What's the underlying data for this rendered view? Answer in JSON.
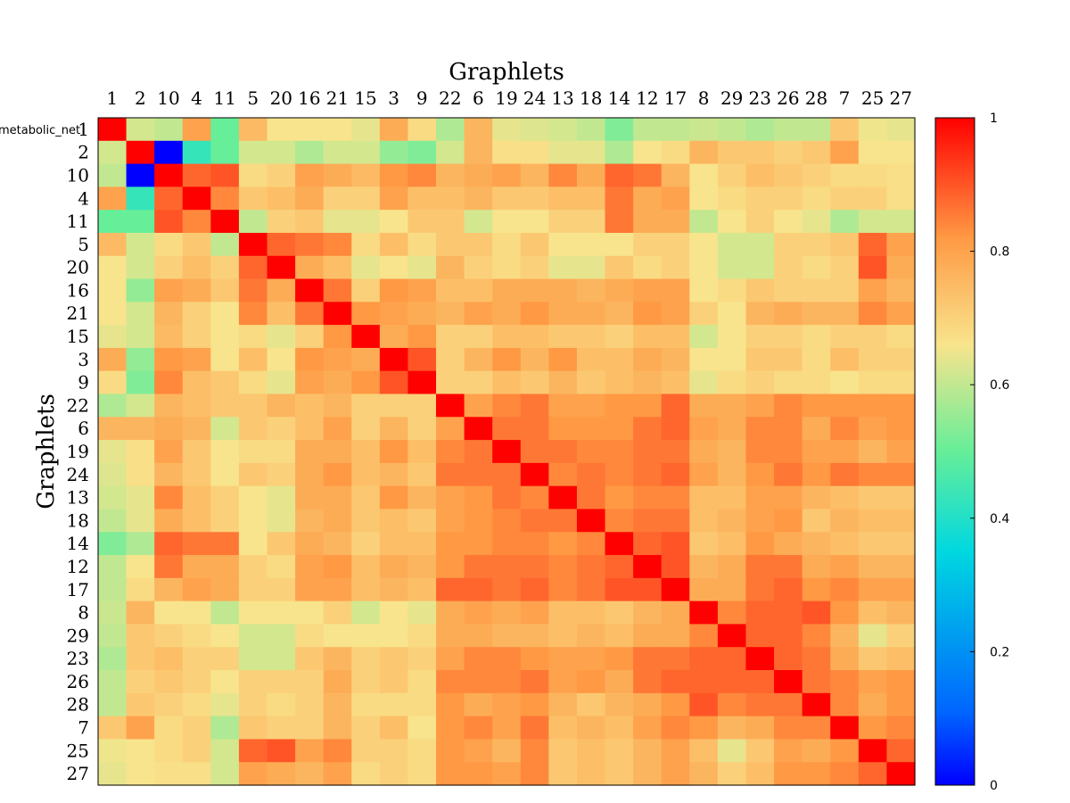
{
  "chart_data": {
    "type": "heatmap",
    "title": "Graphlets",
    "xlabel": "",
    "ylabel": "Graphlets",
    "annotation": "metabolic_net",
    "categories": [
      "1",
      "2",
      "10",
      "4",
      "11",
      "5",
      "20",
      "16",
      "21",
      "15",
      "3",
      "9",
      "22",
      "6",
      "19",
      "24",
      "13",
      "18",
      "14",
      "12",
      "17",
      "8",
      "29",
      "23",
      "26",
      "28",
      "7",
      "25",
      "27"
    ],
    "colorbar": {
      "range": [
        0,
        1
      ],
      "ticks": [
        "0",
        "0.2",
        "0.4",
        "0.6",
        "0.8",
        "1"
      ],
      "colormap": "jet"
    },
    "values": [
      [
        1.0,
        0.62,
        0.6,
        0.8,
        0.5,
        0.75,
        0.66,
        0.66,
        0.66,
        0.64,
        0.78,
        0.68,
        0.58,
        0.76,
        0.64,
        0.63,
        0.62,
        0.6,
        0.53,
        0.6,
        0.6,
        0.61,
        0.6,
        0.58,
        0.6,
        0.6,
        0.72,
        0.65,
        0.64
      ],
      [
        0.62,
        1.0,
        0.0,
        0.43,
        0.5,
        0.62,
        0.62,
        0.58,
        0.62,
        0.62,
        0.55,
        0.53,
        0.62,
        0.76,
        0.67,
        0.67,
        0.64,
        0.64,
        0.58,
        0.66,
        0.68,
        0.76,
        0.72,
        0.72,
        0.7,
        0.72,
        0.8,
        0.66,
        0.66
      ],
      [
        0.6,
        0.0,
        1.0,
        0.88,
        0.9,
        0.68,
        0.7,
        0.8,
        0.78,
        0.75,
        0.82,
        0.84,
        0.76,
        0.78,
        0.8,
        0.76,
        0.84,
        0.78,
        0.88,
        0.86,
        0.76,
        0.66,
        0.7,
        0.74,
        0.72,
        0.7,
        0.68,
        0.68,
        0.67
      ],
      [
        0.8,
        0.43,
        0.88,
        1.0,
        0.84,
        0.72,
        0.74,
        0.78,
        0.7,
        0.7,
        0.8,
        0.74,
        0.74,
        0.76,
        0.72,
        0.72,
        0.74,
        0.74,
        0.86,
        0.78,
        0.8,
        0.66,
        0.68,
        0.7,
        0.7,
        0.68,
        0.7,
        0.7,
        0.67
      ],
      [
        0.5,
        0.5,
        0.9,
        0.84,
        1.0,
        0.6,
        0.7,
        0.72,
        0.64,
        0.64,
        0.66,
        0.72,
        0.72,
        0.62,
        0.66,
        0.66,
        0.7,
        0.7,
        0.86,
        0.78,
        0.78,
        0.6,
        0.66,
        0.7,
        0.66,
        0.64,
        0.58,
        0.62,
        0.62
      ],
      [
        0.75,
        0.62,
        0.68,
        0.72,
        0.6,
        1.0,
        0.88,
        0.86,
        0.84,
        0.68,
        0.74,
        0.68,
        0.72,
        0.72,
        0.68,
        0.72,
        0.66,
        0.66,
        0.66,
        0.7,
        0.7,
        0.66,
        0.62,
        0.62,
        0.7,
        0.7,
        0.72,
        0.88,
        0.8
      ],
      [
        0.66,
        0.62,
        0.7,
        0.74,
        0.7,
        0.88,
        1.0,
        0.78,
        0.74,
        0.64,
        0.66,
        0.64,
        0.76,
        0.7,
        0.68,
        0.7,
        0.64,
        0.64,
        0.72,
        0.68,
        0.7,
        0.66,
        0.62,
        0.62,
        0.7,
        0.68,
        0.7,
        0.9,
        0.78
      ],
      [
        0.66,
        0.55,
        0.8,
        0.78,
        0.72,
        0.86,
        0.78,
        1.0,
        0.86,
        0.7,
        0.82,
        0.8,
        0.74,
        0.74,
        0.78,
        0.78,
        0.78,
        0.76,
        0.78,
        0.8,
        0.8,
        0.66,
        0.68,
        0.72,
        0.7,
        0.7,
        0.7,
        0.8,
        0.76
      ],
      [
        0.66,
        0.62,
        0.76,
        0.7,
        0.66,
        0.84,
        0.74,
        0.86,
        1.0,
        0.82,
        0.8,
        0.78,
        0.76,
        0.8,
        0.78,
        0.82,
        0.78,
        0.78,
        0.76,
        0.82,
        0.8,
        0.7,
        0.66,
        0.76,
        0.78,
        0.76,
        0.76,
        0.84,
        0.8
      ],
      [
        0.64,
        0.62,
        0.75,
        0.7,
        0.66,
        0.68,
        0.64,
        0.7,
        0.82,
        1.0,
        0.78,
        0.82,
        0.7,
        0.7,
        0.74,
        0.74,
        0.72,
        0.72,
        0.7,
        0.74,
        0.74,
        0.62,
        0.66,
        0.7,
        0.7,
        0.68,
        0.7,
        0.7,
        0.68
      ],
      [
        0.78,
        0.55,
        0.82,
        0.8,
        0.66,
        0.74,
        0.66,
        0.82,
        0.8,
        0.78,
        1.0,
        0.9,
        0.7,
        0.76,
        0.82,
        0.76,
        0.82,
        0.74,
        0.74,
        0.78,
        0.76,
        0.66,
        0.66,
        0.72,
        0.72,
        0.68,
        0.74,
        0.7,
        0.7
      ],
      [
        0.68,
        0.53,
        0.84,
        0.74,
        0.72,
        0.68,
        0.64,
        0.8,
        0.78,
        0.82,
        0.9,
        1.0,
        0.7,
        0.7,
        0.74,
        0.72,
        0.76,
        0.72,
        0.74,
        0.76,
        0.74,
        0.64,
        0.68,
        0.7,
        0.68,
        0.68,
        0.66,
        0.68,
        0.68
      ],
      [
        0.58,
        0.62,
        0.76,
        0.74,
        0.72,
        0.72,
        0.76,
        0.74,
        0.76,
        0.7,
        0.7,
        0.7,
        1.0,
        0.8,
        0.84,
        0.86,
        0.8,
        0.8,
        0.82,
        0.82,
        0.88,
        0.78,
        0.78,
        0.8,
        0.84,
        0.82,
        0.82,
        0.82,
        0.82
      ],
      [
        0.76,
        0.76,
        0.78,
        0.76,
        0.62,
        0.72,
        0.7,
        0.74,
        0.8,
        0.7,
        0.76,
        0.7,
        0.8,
        1.0,
        0.86,
        0.86,
        0.82,
        0.82,
        0.82,
        0.86,
        0.88,
        0.8,
        0.78,
        0.84,
        0.84,
        0.78,
        0.84,
        0.8,
        0.82
      ],
      [
        0.64,
        0.67,
        0.8,
        0.72,
        0.66,
        0.68,
        0.68,
        0.78,
        0.78,
        0.74,
        0.82,
        0.74,
        0.84,
        0.86,
        1.0,
        0.86,
        0.86,
        0.84,
        0.84,
        0.86,
        0.86,
        0.78,
        0.76,
        0.84,
        0.84,
        0.8,
        0.8,
        0.76,
        0.8
      ],
      [
        0.63,
        0.67,
        0.76,
        0.72,
        0.66,
        0.72,
        0.7,
        0.78,
        0.82,
        0.74,
        0.76,
        0.72,
        0.86,
        0.86,
        0.86,
        1.0,
        0.84,
        0.86,
        0.84,
        0.86,
        0.88,
        0.8,
        0.76,
        0.82,
        0.86,
        0.82,
        0.86,
        0.84,
        0.84
      ],
      [
        0.62,
        0.64,
        0.84,
        0.74,
        0.7,
        0.66,
        0.64,
        0.78,
        0.78,
        0.72,
        0.82,
        0.76,
        0.8,
        0.82,
        0.86,
        0.84,
        1.0,
        0.86,
        0.82,
        0.84,
        0.84,
        0.74,
        0.74,
        0.8,
        0.8,
        0.76,
        0.74,
        0.72,
        0.72
      ],
      [
        0.6,
        0.64,
        0.78,
        0.74,
        0.7,
        0.66,
        0.64,
        0.76,
        0.78,
        0.72,
        0.74,
        0.72,
        0.8,
        0.82,
        0.84,
        0.86,
        0.86,
        1.0,
        0.84,
        0.86,
        0.86,
        0.74,
        0.76,
        0.8,
        0.82,
        0.72,
        0.76,
        0.74,
        0.74
      ],
      [
        0.53,
        0.58,
        0.88,
        0.86,
        0.86,
        0.66,
        0.72,
        0.78,
        0.76,
        0.7,
        0.74,
        0.74,
        0.82,
        0.82,
        0.84,
        0.84,
        0.82,
        0.84,
        1.0,
        0.88,
        0.9,
        0.72,
        0.74,
        0.82,
        0.78,
        0.76,
        0.74,
        0.72,
        0.72
      ],
      [
        0.6,
        0.66,
        0.86,
        0.78,
        0.78,
        0.7,
        0.68,
        0.8,
        0.82,
        0.74,
        0.78,
        0.76,
        0.82,
        0.86,
        0.86,
        0.86,
        0.84,
        0.86,
        0.88,
        1.0,
        0.9,
        0.76,
        0.78,
        0.86,
        0.86,
        0.78,
        0.8,
        0.76,
        0.76
      ],
      [
        0.6,
        0.68,
        0.76,
        0.8,
        0.78,
        0.7,
        0.7,
        0.8,
        0.8,
        0.74,
        0.76,
        0.74,
        0.88,
        0.88,
        0.86,
        0.88,
        0.84,
        0.86,
        0.9,
        0.9,
        1.0,
        0.78,
        0.78,
        0.86,
        0.88,
        0.82,
        0.84,
        0.8,
        0.8
      ],
      [
        0.61,
        0.76,
        0.66,
        0.66,
        0.6,
        0.66,
        0.66,
        0.66,
        0.7,
        0.62,
        0.66,
        0.64,
        0.78,
        0.8,
        0.78,
        0.8,
        0.74,
        0.74,
        0.72,
        0.76,
        0.78,
        1.0,
        0.84,
        0.88,
        0.88,
        0.9,
        0.82,
        0.74,
        0.76
      ],
      [
        0.6,
        0.72,
        0.7,
        0.68,
        0.66,
        0.62,
        0.62,
        0.68,
        0.66,
        0.66,
        0.66,
        0.68,
        0.78,
        0.78,
        0.76,
        0.76,
        0.74,
        0.76,
        0.74,
        0.78,
        0.78,
        0.84,
        1.0,
        0.88,
        0.88,
        0.84,
        0.76,
        0.64,
        0.7
      ],
      [
        0.58,
        0.72,
        0.74,
        0.7,
        0.7,
        0.62,
        0.62,
        0.72,
        0.76,
        0.7,
        0.72,
        0.7,
        0.8,
        0.84,
        0.84,
        0.82,
        0.8,
        0.8,
        0.82,
        0.86,
        0.86,
        0.88,
        0.88,
        1.0,
        0.88,
        0.86,
        0.78,
        0.72,
        0.74
      ],
      [
        0.6,
        0.7,
        0.72,
        0.7,
        0.66,
        0.7,
        0.7,
        0.7,
        0.78,
        0.7,
        0.72,
        0.68,
        0.84,
        0.84,
        0.84,
        0.86,
        0.8,
        0.82,
        0.78,
        0.86,
        0.88,
        0.88,
        0.88,
        0.88,
        1.0,
        0.86,
        0.84,
        0.8,
        0.82
      ],
      [
        0.6,
        0.72,
        0.7,
        0.68,
        0.64,
        0.7,
        0.68,
        0.7,
        0.76,
        0.68,
        0.68,
        0.68,
        0.82,
        0.78,
        0.8,
        0.82,
        0.76,
        0.72,
        0.76,
        0.78,
        0.82,
        0.9,
        0.84,
        0.86,
        0.86,
        1.0,
        0.84,
        0.78,
        0.82
      ],
      [
        0.72,
        0.8,
        0.68,
        0.7,
        0.58,
        0.72,
        0.7,
        0.7,
        0.76,
        0.7,
        0.74,
        0.66,
        0.82,
        0.84,
        0.8,
        0.86,
        0.74,
        0.76,
        0.74,
        0.8,
        0.84,
        0.82,
        0.76,
        0.78,
        0.84,
        0.84,
        1.0,
        0.82,
        0.84
      ],
      [
        0.65,
        0.66,
        0.68,
        0.7,
        0.62,
        0.88,
        0.9,
        0.8,
        0.84,
        0.7,
        0.7,
        0.68,
        0.82,
        0.8,
        0.76,
        0.84,
        0.72,
        0.74,
        0.72,
        0.76,
        0.8,
        0.74,
        0.64,
        0.72,
        0.8,
        0.78,
        0.82,
        1.0,
        0.88
      ],
      [
        0.64,
        0.66,
        0.67,
        0.67,
        0.62,
        0.8,
        0.78,
        0.76,
        0.8,
        0.68,
        0.7,
        0.68,
        0.82,
        0.82,
        0.8,
        0.84,
        0.72,
        0.74,
        0.72,
        0.76,
        0.8,
        0.76,
        0.7,
        0.74,
        0.82,
        0.82,
        0.84,
        0.88,
        1.0
      ]
    ]
  }
}
